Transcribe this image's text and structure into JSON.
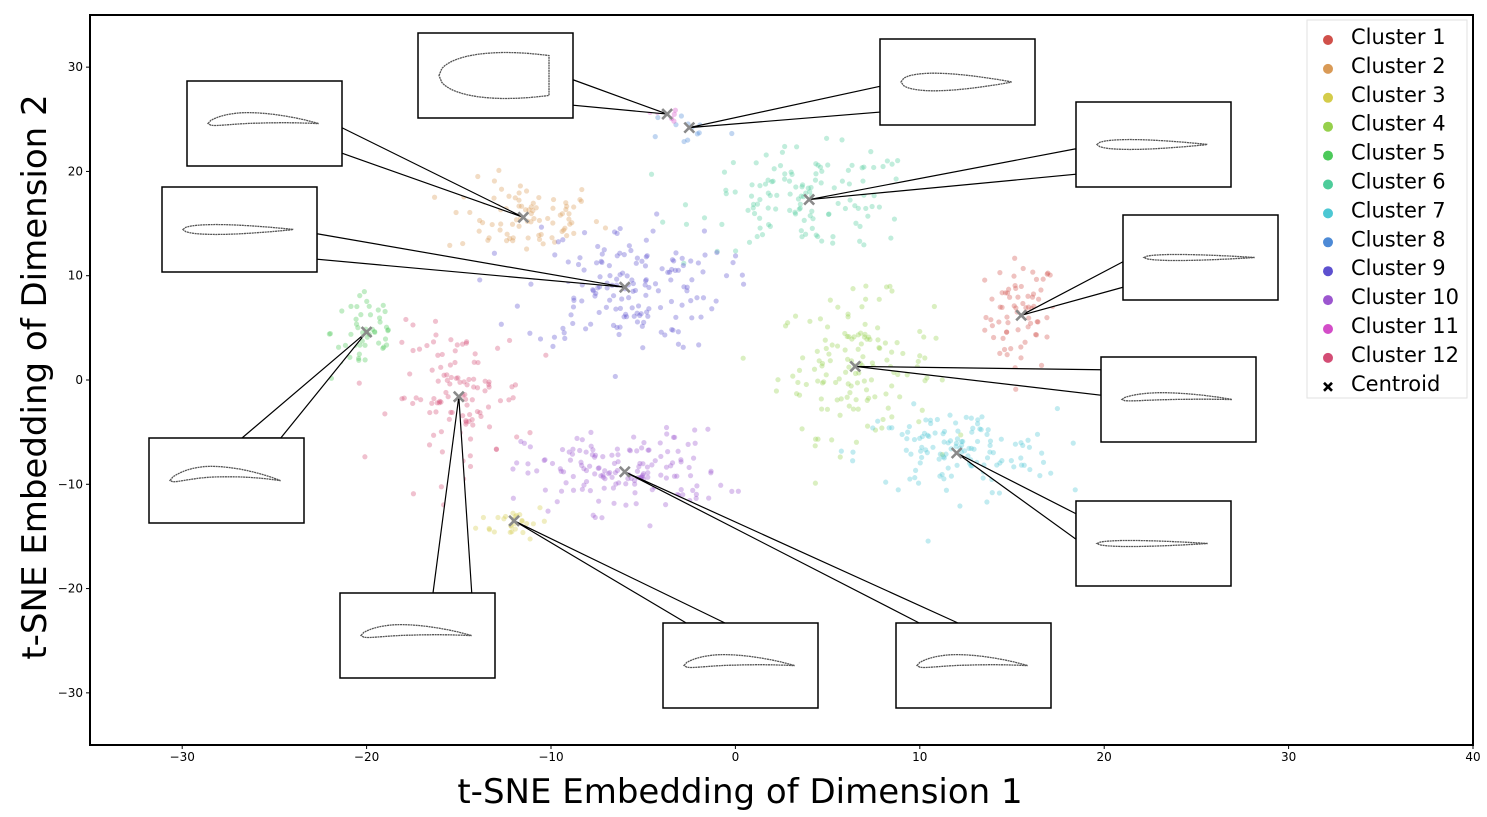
{
  "chart_data": {
    "type": "scatter",
    "title": "",
    "xlabel": "t-SNE Embedding of Dimension 1",
    "ylabel": "t-SNE Embedding of Dimension 2",
    "xlim": [
      -35,
      40
    ],
    "ylim": [
      -35,
      35
    ],
    "x_ticks": [
      -30,
      -20,
      -10,
      0,
      10,
      20,
      30,
      40
    ],
    "y_ticks": [
      -30,
      -20,
      -10,
      0,
      10,
      20,
      30
    ],
    "x_tick_labels": [
      "−30",
      "−20",
      "−10",
      "0",
      "10",
      "20",
      "30",
      "40"
    ],
    "y_tick_labels": [
      "−30",
      "−20",
      "−10",
      "0",
      "10",
      "20",
      "30"
    ],
    "grid": false,
    "legend_position": "top-right",
    "series": [
      {
        "name": "Cluster 1",
        "color": "#d0504a",
        "centroid": [
          15.5,
          6.2
        ],
        "spread": [
          1.6,
          4.5
        ],
        "count": 70
      },
      {
        "name": "Cluster 2",
        "color": "#d99a56",
        "centroid": [
          -11.5,
          15.6
        ],
        "spread": [
          3.5,
          3.0
        ],
        "count": 85
      },
      {
        "name": "Cluster 3",
        "color": "#d4cc4a",
        "centroid": [
          -12.0,
          -13.5
        ],
        "spread": [
          1.6,
          1.4
        ],
        "count": 28
      },
      {
        "name": "Cluster 4",
        "color": "#96d04c",
        "centroid": [
          6.5,
          1.3
        ],
        "spread": [
          3.5,
          5.5
        ],
        "count": 140
      },
      {
        "name": "Cluster 5",
        "color": "#4cc95a",
        "centroid": [
          -20.0,
          4.6
        ],
        "spread": [
          1.6,
          4.0
        ],
        "count": 50
      },
      {
        "name": "Cluster 6",
        "color": "#4dcc9a",
        "centroid": [
          4.0,
          17.3
        ],
        "spread": [
          5.0,
          4.0
        ],
        "count": 130
      },
      {
        "name": "Cluster 7",
        "color": "#4cc7d3",
        "centroid": [
          12.0,
          -7.0
        ],
        "spread": [
          4.5,
          3.5
        ],
        "count": 130
      },
      {
        "name": "Cluster 8",
        "color": "#4d8ad6",
        "centroid": [
          -2.5,
          24.2
        ],
        "spread": [
          1.8,
          1.5
        ],
        "count": 12
      },
      {
        "name": "Cluster 9",
        "color": "#5d50cf",
        "centroid": [
          -6.0,
          8.9
        ],
        "spread": [
          4.5,
          5.0
        ],
        "count": 160
      },
      {
        "name": "Cluster 10",
        "color": "#9c56cf",
        "centroid": [
          -6.0,
          -8.8
        ],
        "spread": [
          4.5,
          3.3
        ],
        "count": 150
      },
      {
        "name": "Cluster 11",
        "color": "#d34dc8",
        "centroid": [
          -3.7,
          25.5
        ],
        "spread": [
          0.8,
          0.7
        ],
        "count": 6
      },
      {
        "name": "Cluster 12",
        "color": "#d34d75",
        "centroid": [
          -15.0,
          -1.6
        ],
        "spread": [
          3.0,
          5.5
        ],
        "count": 110
      }
    ],
    "centroid_legend": {
      "name": "Centroid",
      "marker": "x",
      "color": "#000000"
    },
    "centroid_marker_color": "#8a8a8a",
    "airfoil_insets": [
      {
        "cluster": "Cluster 11",
        "shape": "bluff-teardrop"
      },
      {
        "cluster": "Cluster 8",
        "shape": "thick-symmetric"
      },
      {
        "cluster": "Cluster 2",
        "shape": "cambered"
      },
      {
        "cluster": "Cluster 6",
        "shape": "thin-symmetric"
      },
      {
        "cluster": "Cluster 9",
        "shape": "thin-symmetric"
      },
      {
        "cluster": "Cluster 1",
        "shape": "very-thin"
      },
      {
        "cluster": "Cluster 5",
        "shape": "highly-cambered"
      },
      {
        "cluster": "Cluster 4",
        "shape": "thin-cambered"
      },
      {
        "cluster": "Cluster 12",
        "shape": "cambered"
      },
      {
        "cluster": "Cluster 7",
        "shape": "very-thin"
      },
      {
        "cluster": "Cluster 3",
        "shape": "cambered"
      },
      {
        "cluster": "Cluster 10",
        "shape": "cambered"
      }
    ]
  }
}
